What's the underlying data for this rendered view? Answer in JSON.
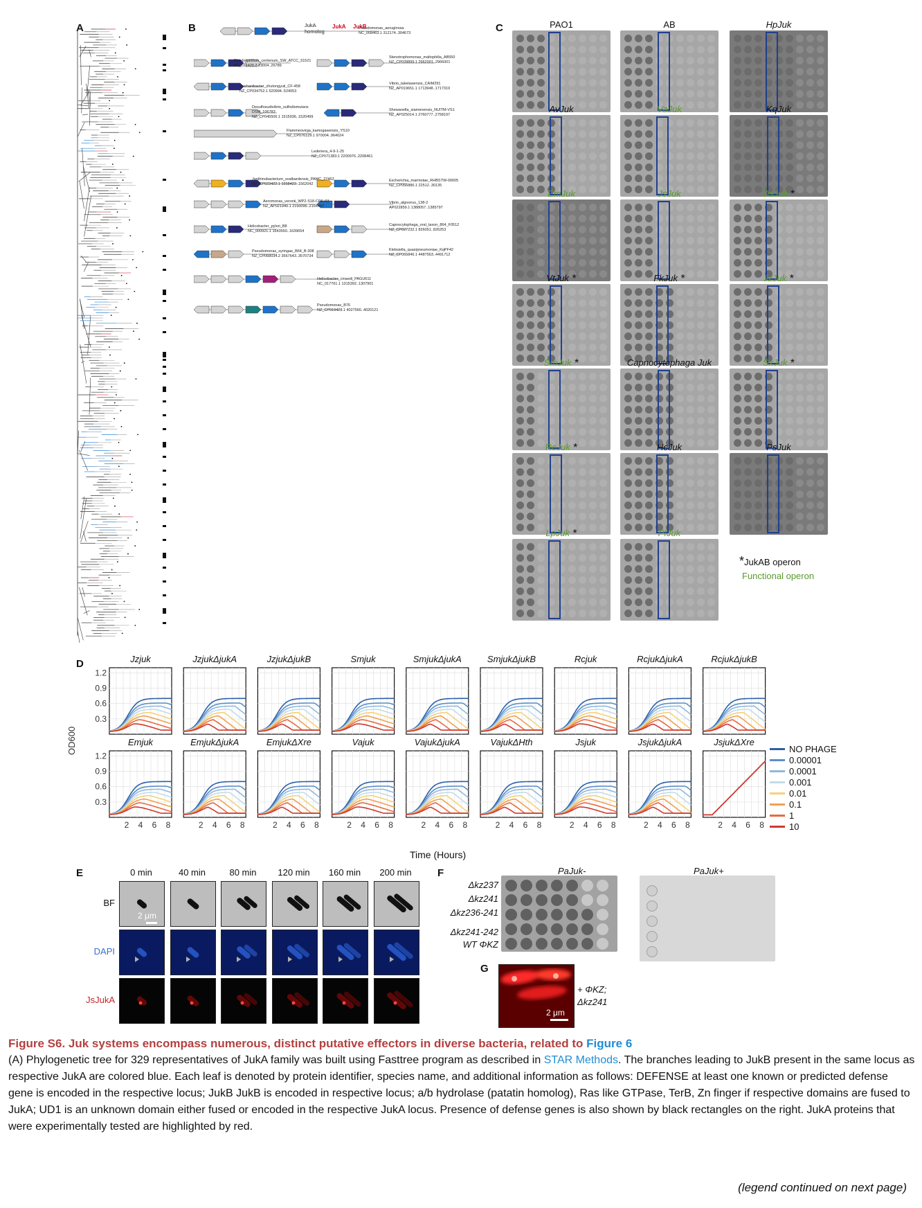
{
  "panel_labels": {
    "a": "A",
    "b": "B",
    "c": "C",
    "d": "D",
    "e": "E",
    "f": "F",
    "g": "G"
  },
  "panel_b": {
    "header": {
      "homolog": "JukA\nhomolog",
      "jukA": "JukA",
      "jukB": "JukB"
    },
    "operons": [
      {
        "name": "Pseudomonas_aeruginosa\nNC_008463.1 312174..304673"
      },
      {
        "name": "Rhodospirillum_centenum_SW_ATCC_51521\nNC_011420.2 23004..26789"
      },
      {
        "name": "Stenotrophomonas_maltophilia_AB550\nNZ_CP028899.1 2962001..2966001"
      },
      {
        "name": "Jinshanibacter_zhutongyuii_CF-458\nNZ_CP034752.1 520994..524053"
      },
      {
        "name": "Vibrio_takelawensis_CAIM291\nNZ_AP019651.1 1713948..1717319"
      },
      {
        "name": "Desulfosudivibrio_sulfodismutans\nDSM_106783\nNZ_CP045506.1 1515936..1520499"
      },
      {
        "name": "Shewanella_xiamenensis_NUITM-VS1\nNZ_AP025014.1 2760777..2758197"
      },
      {
        "name": "Flammeovirga_kamogawensis_YS10\nNZ_CP076129.1 970004..964024"
      },
      {
        "name": "Lederiera_4-9-1-25\nNZ_CP071383.1 2200976..2208461"
      },
      {
        "name": "Janthinobacterium_svalbardensis_PAMC_27463\nNZ_CP023422.1 1558422..1562042"
      },
      {
        "name": "Escherichia_marmotae_RHBSTW-00605\nNZ_CP056886.1 22512..30135"
      },
      {
        "name": "Aeromonas_veronii_WP2-S18-CRE-03\nNZ_AP021940.1 2150096..2154497"
      },
      {
        "name": "Vibrio_algivorus_138-2\nAP022859.1 1388057..1385797"
      },
      {
        "name": "Helicobacter_pylori_B8\nNC_000921.1 1643550..1639654"
      },
      {
        "name": "Capnocytophaga_oral_taxon_864_F0512\nNZ_CP027232.1 826051..826253"
      },
      {
        "name": "Pseudomonas_syringae_B64_B-308\nNZ_CP068034.2 3567643..3570734"
      },
      {
        "name": "Klebsiella_quasipneumoniae_KqPF42\nNZ_CP065846.1 4487563..4491712"
      },
      {
        "name": "Helicobacter_cinaedi_PAGU611\nNC_017761.1 1315392..1307901"
      },
      {
        "name": "Pseudomonas_B76\nNZ_CP019428.1 4027566..4020121"
      }
    ]
  },
  "panel_c": {
    "plates": [
      {
        "label": "PAO1",
        "italic": false,
        "green": false,
        "star": false
      },
      {
        "label": "AB",
        "italic": false,
        "green": false,
        "star": false
      },
      {
        "label": "HpJuk",
        "italic": true,
        "green": false,
        "star": false
      },
      {
        "label": "AvJuk",
        "italic": true,
        "green": false,
        "star": false
      },
      {
        "label": "VaJuk",
        "italic": true,
        "green": true,
        "star": false
      },
      {
        "label": "KqJuk",
        "italic": true,
        "green": false,
        "star": false
      },
      {
        "label": "EmJuk",
        "italic": true,
        "green": true,
        "star": false
      },
      {
        "label": "JsJuk",
        "italic": true,
        "green": true,
        "star": false
      },
      {
        "label": "DsJuk",
        "italic": true,
        "green": true,
        "star": true
      },
      {
        "label": "VtJuk",
        "italic": true,
        "green": false,
        "star": true
      },
      {
        "label": "FkJuk",
        "italic": true,
        "green": false,
        "star": true
      },
      {
        "label": "JzJuk",
        "italic": true,
        "green": true,
        "star": true
      },
      {
        "label": "SmJuk",
        "italic": true,
        "green": true,
        "star": true
      },
      {
        "label": "Capnocytophaga Juk",
        "italic": true,
        "green": false,
        "star": false
      },
      {
        "label": "SxJuk",
        "italic": true,
        "green": true,
        "star": true
      },
      {
        "label": "RcJuk",
        "italic": true,
        "green": true,
        "star": true
      },
      {
        "label": "HcJuk",
        "italic": true,
        "green": false,
        "star": false
      },
      {
        "label": "PsJuk",
        "italic": true,
        "green": false,
        "star": false
      },
      {
        "label": "LpJuk",
        "italic": true,
        "green": true,
        "star": true
      },
      {
        "label": "PfJuk",
        "italic": true,
        "green": true,
        "star": false
      }
    ],
    "legend": {
      "star_text": "JukAB operon",
      "functional": "Functional operon"
    }
  },
  "panel_d": {
    "ylabel": "OD600",
    "xlabel": "Time (Hours)",
    "yticks": [
      "1.2",
      "0.9",
      "0.6",
      "0.3"
    ],
    "xticks": [
      "2",
      "4",
      "6",
      "8"
    ],
    "legend": [
      {
        "label": "NO PHAGE",
        "color": "#2b5fa8"
      },
      {
        "label": "0.00001",
        "color": "#5c8ec8"
      },
      {
        "label": "0.0001",
        "color": "#8fb8de"
      },
      {
        "label": "0.001",
        "color": "#c3dbea"
      },
      {
        "label": "0.01",
        "color": "#f4d27a"
      },
      {
        "label": "0.1",
        "color": "#f0a050"
      },
      {
        "label": "1",
        "color": "#e76a40"
      },
      {
        "label": "10",
        "color": "#cc3a30"
      }
    ],
    "panels": [
      {
        "title": "Jzjuk"
      },
      {
        "title": "JzjukΔjukA"
      },
      {
        "title": "JzjukΔjukB"
      },
      {
        "title": "Smjuk"
      },
      {
        "title": "SmjukΔjukA"
      },
      {
        "title": "SmjukΔjukB"
      },
      {
        "title": "Rcjuk"
      },
      {
        "title": "RcjukΔjukA"
      },
      {
        "title": "RcjukΔjukB"
      },
      {
        "title": "Emjuk"
      },
      {
        "title": "EmjukΔjukA"
      },
      {
        "title": "EmjukΔXre"
      },
      {
        "title": "Vajuk"
      },
      {
        "title": "VajukΔjukA"
      },
      {
        "title": "VajukΔHth"
      },
      {
        "title": "Jsjuk"
      },
      {
        "title": "JsjukΔjukA"
      },
      {
        "title": "JsjukΔXre"
      }
    ]
  },
  "panel_e": {
    "times": [
      "0 min",
      "40 min",
      "80 min",
      "120 min",
      "160 min",
      "200 min"
    ],
    "rows": [
      {
        "label": "BF",
        "color": "#111111"
      },
      {
        "label": "DAPI",
        "color": "#3a6fd1"
      },
      {
        "label": "JsJukA",
        "color": "#c0282c"
      }
    ],
    "scale": "2 μm"
  },
  "panel_f": {
    "left_header": "PaJuk-",
    "right_header": "PaJuk+",
    "rows": [
      "Δkz237",
      "Δkz241",
      "Δkz236-241",
      "Δkz241-242",
      "WT ΦKZ"
    ]
  },
  "panel_g": {
    "label": "+ ΦKZ;\nΔkz241",
    "scale": "2 μm"
  },
  "caption": {
    "title_prefix": "Figure S6. Juk systems encompass numerous, distinct putative effectors in diverse bacteria, related to ",
    "title_link": "Figure 6",
    "body_1": "(A) Phylogenetic tree for 329 representatives of JukA family was built using Fasttree program as described in ",
    "body_link": "STAR Methods",
    "body_2": ". The branches leading to JukB present in the same locus as respective JukA are colored blue. Each leaf is denoted by protein identifier, species name, and additional information as follows: DEFENSE    at least one known or predicted defense gene is encoded in the respective locus; JukB    JukB is encoded in respective locus; a/b hydrolase (patatin homolog), Ras like GTPase, TerB, Zn finger    if respective domains are fused to JukA; UD1    is an unknown domain either fused or encoded in the respective JukA locus. Presence of defense genes is also shown by black rectangles on the right. JukA proteins that were experimentally tested are highlighted by red.",
    "continued": "(legend continued on next page)"
  }
}
